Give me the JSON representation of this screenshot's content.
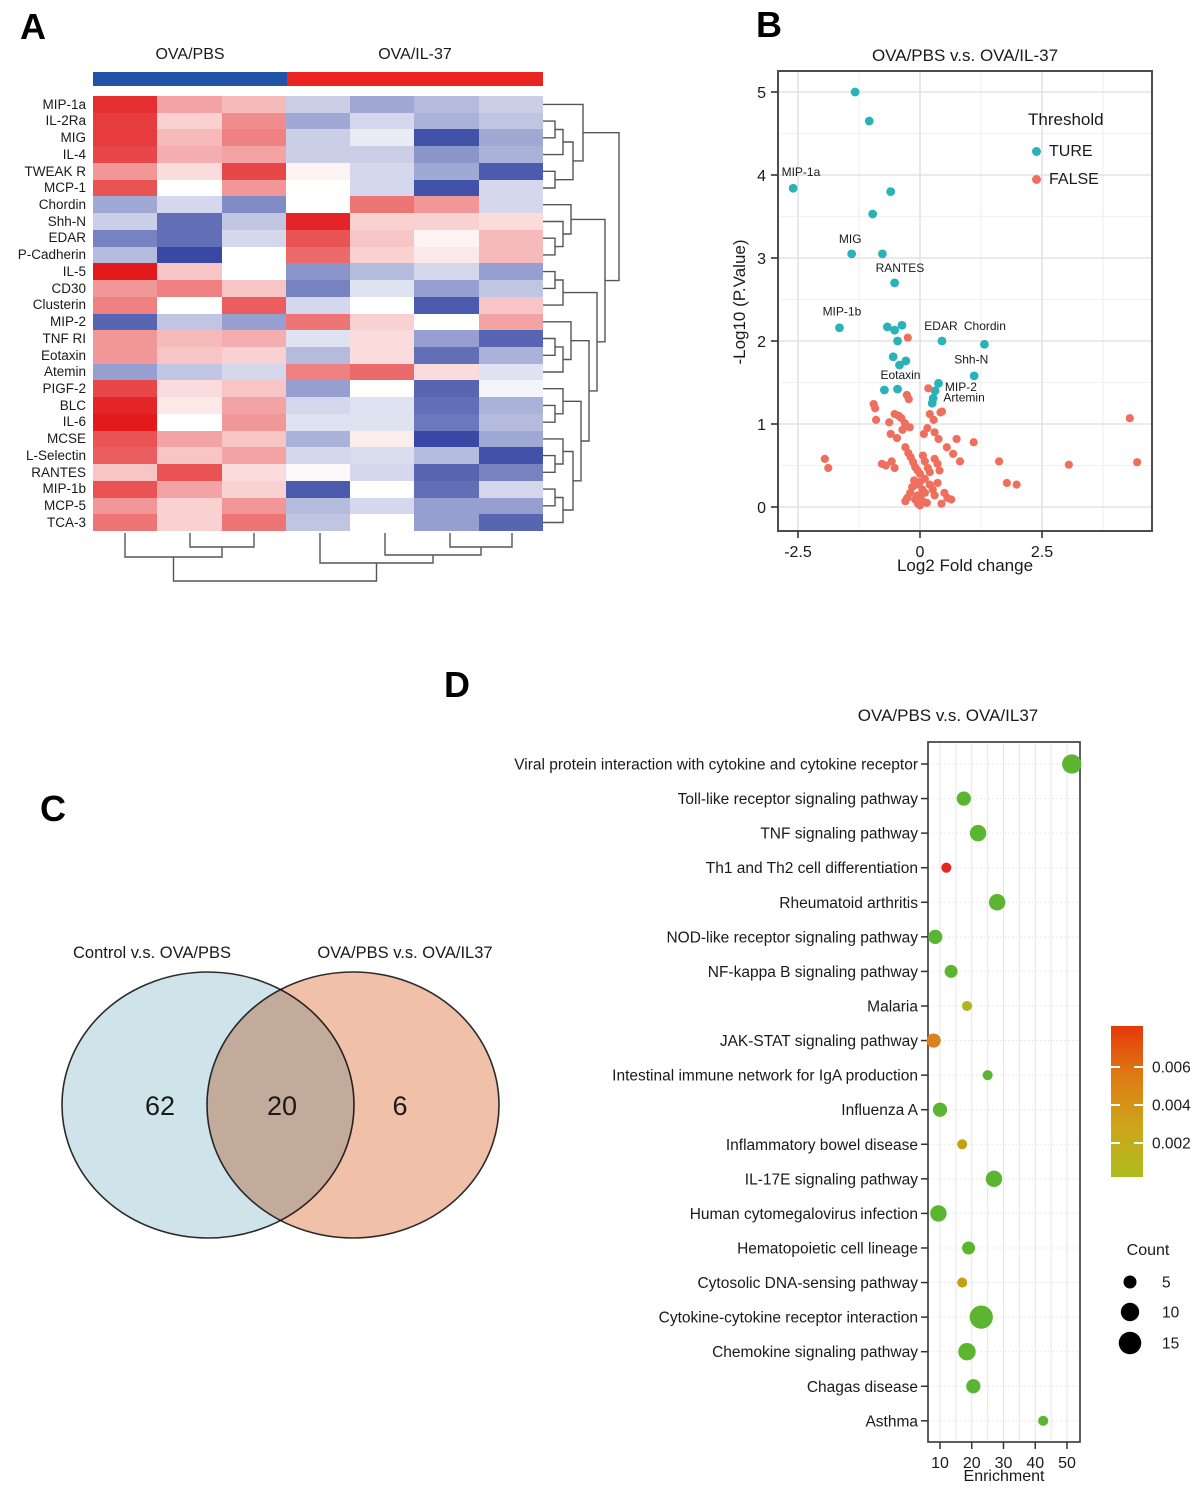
{
  "panels": {
    "a": {
      "label": "A"
    },
    "b": {
      "label": "B"
    },
    "c": {
      "label": "C"
    },
    "d": {
      "label": "D"
    }
  },
  "chart_data": [
    {
      "id": "panel_a_heatmap",
      "type": "heatmap",
      "group_labels": [
        "OVA/PBS",
        "OVA/IL-37"
      ],
      "group_columns": [
        3,
        4
      ],
      "annotation_colors": [
        "#2153a6",
        "#ea2420"
      ],
      "colormap": {
        "negative": "#2e3fa0",
        "mid": "#ffffff",
        "positive": "#e31a1c",
        "range": [
          -2,
          2
        ]
      },
      "rows": [
        "MIP-1a",
        "IL-2Ra",
        "MIG",
        "IL-4",
        "TWEAK R",
        "MCP-1",
        "Chordin",
        "Shh-N",
        "EDAR",
        "P-Cadherin",
        "IL-5",
        "CD30",
        "Clusterin",
        "MIP-2",
        "TNF RI",
        "Eotaxin",
        "Atemin",
        "PIGF-2",
        "BLC",
        "IL-6",
        "MCSE",
        "L-Selectin",
        "RANTES",
        "MIP-1b",
        "MCP-5",
        "TCA-3"
      ],
      "values": [
        [
          1.8,
          0.8,
          0.6,
          -0.5,
          -0.9,
          -0.7,
          -0.5
        ],
        [
          1.7,
          0.4,
          1.0,
          -0.9,
          -0.4,
          -0.8,
          -0.6
        ],
        [
          1.7,
          0.6,
          1.1,
          -0.5,
          -0.2,
          -1.8,
          -0.9
        ],
        [
          1.6,
          0.7,
          0.8,
          -0.5,
          -0.5,
          -1.1,
          -0.8
        ],
        [
          0.9,
          0.3,
          1.6,
          0.1,
          -0.4,
          -0.9,
          -1.7
        ],
        [
          1.5,
          0.0,
          0.9,
          0.0,
          -0.4,
          -1.8,
          -0.4
        ],
        [
          -0.9,
          -0.4,
          -1.2,
          0.0,
          1.2,
          0.9,
          -0.4
        ],
        [
          -0.5,
          -1.5,
          -0.6,
          1.9,
          0.4,
          0.4,
          0.3
        ],
        [
          -1.3,
          -1.5,
          -0.4,
          1.5,
          0.5,
          0.1,
          0.6
        ],
        [
          -0.7,
          -1.9,
          0.0,
          1.3,
          0.4,
          0.2,
          0.6
        ],
        [
          2.0,
          0.5,
          0.0,
          -1.1,
          -0.7,
          -0.4,
          -1.0
        ],
        [
          0.9,
          1.1,
          0.5,
          -1.3,
          -0.3,
          -1.0,
          -0.6
        ],
        [
          1.1,
          0.0,
          1.4,
          -0.4,
          0.0,
          -1.7,
          0.5
        ],
        [
          -1.6,
          -0.6,
          -1.0,
          1.2,
          0.4,
          0.0,
          0.8
        ],
        [
          0.9,
          0.6,
          0.7,
          -0.3,
          0.3,
          -1.0,
          -1.6
        ],
        [
          0.9,
          0.5,
          0.4,
          -0.7,
          0.3,
          -1.5,
          -0.8
        ],
        [
          -1.0,
          -0.6,
          -0.4,
          1.1,
          1.3,
          0.3,
          -0.3
        ],
        [
          1.6,
          0.3,
          0.5,
          -1.0,
          0.0,
          -1.6,
          -0.1
        ],
        [
          1.9,
          0.2,
          0.8,
          -0.4,
          -0.3,
          -1.5,
          -0.8
        ],
        [
          2.0,
          0.0,
          0.9,
          -0.3,
          -0.3,
          -1.4,
          -0.7
        ],
        [
          1.5,
          0.8,
          0.5,
          -0.8,
          0.15,
          -1.9,
          -0.9
        ],
        [
          1.4,
          0.5,
          0.8,
          -0.4,
          -0.35,
          -0.7,
          -1.8
        ],
        [
          0.5,
          1.5,
          0.3,
          0.05,
          -0.4,
          -1.6,
          -1.3
        ],
        [
          1.5,
          0.8,
          0.4,
          -1.7,
          0.0,
          -1.5,
          -0.4
        ],
        [
          0.9,
          0.4,
          0.9,
          -0.7,
          -0.4,
          -1.0,
          -1.0
        ],
        [
          1.2,
          0.4,
          1.2,
          -0.6,
          0.0,
          -1.0,
          -1.6
        ]
      ]
    },
    {
      "id": "panel_b_volcano",
      "type": "scatter",
      "title": "OVA/PBS v.s. OVA/IL-37",
      "xlabel": "Log2 Fold change",
      "ylabel": "-Log10 (P.Value)",
      "xlim": [
        -2.9,
        4.75
      ],
      "ylim": [
        -0.32,
        5.25
      ],
      "xticks": [
        -2.5,
        0,
        2.5
      ],
      "yticks": [
        0,
        1,
        2,
        3,
        4,
        5
      ],
      "xticks_minor": [
        -1.25,
        1.25,
        3.75
      ],
      "yticks_minor": [
        0.5,
        1.5,
        2.5,
        3.5,
        4.5
      ],
      "legend": {
        "title": "Threshold",
        "items": [
          {
            "label": "TURE",
            "color": "#29b2b8"
          },
          {
            "label": "FALSE",
            "color": "#ef6f5e"
          }
        ]
      },
      "series": [
        {
          "name": "TURE",
          "color": "#29b2b8",
          "points": [
            [
              -1.33,
              5.0
            ],
            [
              -1.04,
              4.65
            ],
            [
              -2.6,
              3.84
            ],
            [
              -0.6,
              3.8
            ],
            [
              -0.97,
              3.53
            ],
            [
              -1.4,
              3.05
            ],
            [
              -0.77,
              3.05
            ],
            [
              -0.52,
              2.7
            ],
            [
              -1.65,
              2.16
            ],
            [
              -0.67,
              2.17
            ],
            [
              -0.52,
              2.13
            ],
            [
              -0.37,
              2.19
            ],
            [
              -0.46,
              2.0
            ],
            [
              0.45,
              2.0
            ],
            [
              1.32,
              1.96
            ],
            [
              -0.55,
              1.81
            ],
            [
              -0.42,
              1.71
            ],
            [
              -0.29,
              1.76
            ],
            [
              1.11,
              1.58
            ],
            [
              -0.73,
              1.41
            ],
            [
              -0.46,
              1.42
            ],
            [
              0.38,
              1.49
            ],
            [
              0.31,
              1.4
            ],
            [
              0.27,
              1.31
            ],
            [
              0.25,
              1.25
            ]
          ]
        },
        {
          "name": "FALSE",
          "color": "#ef6f5e",
          "points": [
            [
              -1.95,
              0.58
            ],
            [
              -1.88,
              0.47
            ],
            [
              -0.95,
              1.24
            ],
            [
              -0.92,
              1.19
            ],
            [
              -0.25,
              2.04
            ],
            [
              0.17,
              1.43
            ],
            [
              -0.27,
              1.35
            ],
            [
              -0.23,
              1.3
            ],
            [
              0.42,
              1.14
            ],
            [
              -0.63,
              1.02
            ],
            [
              -0.38,
              1.07
            ],
            [
              -0.31,
              1.01
            ],
            [
              -0.21,
              0.96
            ],
            [
              -0.9,
              1.05
            ],
            [
              -0.52,
              1.12
            ],
            [
              -0.44,
              1.1
            ],
            [
              -0.6,
              0.88
            ],
            [
              -0.47,
              0.83
            ],
            [
              0.2,
              1.12
            ],
            [
              0.28,
              1.05
            ],
            [
              0.15,
              0.95
            ],
            [
              0.3,
              0.9
            ],
            [
              0.45,
              1.15
            ],
            [
              0.38,
              0.82
            ],
            [
              0.75,
              0.82
            ],
            [
              0.68,
              0.64
            ],
            [
              0.82,
              0.55
            ],
            [
              1.1,
              0.78
            ],
            [
              1.62,
              0.55
            ],
            [
              1.78,
              0.29
            ],
            [
              1.98,
              0.27
            ],
            [
              3.05,
              0.51
            ],
            [
              4.3,
              1.07
            ],
            [
              4.45,
              0.54
            ],
            [
              -0.78,
              0.52
            ],
            [
              -0.7,
              0.5
            ],
            [
              -0.58,
              0.55
            ],
            [
              -0.52,
              0.47
            ],
            [
              -0.3,
              0.72
            ],
            [
              -0.24,
              0.65
            ],
            [
              -0.19,
              0.6
            ],
            [
              -0.14,
              0.54
            ],
            [
              -0.1,
              0.48
            ],
            [
              -0.05,
              0.44
            ],
            [
              0.0,
              0.4
            ],
            [
              0.06,
              0.62
            ],
            [
              0.1,
              0.55
            ],
            [
              0.16,
              0.47
            ],
            [
              0.2,
              0.42
            ],
            [
              0.3,
              0.58
            ],
            [
              0.36,
              0.52
            ],
            [
              0.4,
              0.44
            ],
            [
              0.1,
              0.34
            ],
            [
              0.0,
              0.3
            ],
            [
              -0.06,
              0.27
            ],
            [
              -0.12,
              0.32
            ],
            [
              -0.16,
              0.24
            ],
            [
              0.05,
              0.21
            ],
            [
              0.1,
              0.17
            ],
            [
              -0.05,
              0.14
            ],
            [
              0.0,
              0.11
            ],
            [
              0.05,
              0.07
            ],
            [
              -0.1,
              0.09
            ],
            [
              0.14,
              0.05
            ],
            [
              -0.04,
              0.04
            ],
            [
              0.0,
              0.02
            ],
            [
              0.2,
              0.27
            ],
            [
              0.26,
              0.21
            ],
            [
              0.3,
              0.14
            ],
            [
              0.5,
              0.17
            ],
            [
              0.56,
              0.11
            ],
            [
              0.36,
              0.29
            ],
            [
              -0.2,
              0.17
            ],
            [
              -0.26,
              0.11
            ],
            [
              -0.3,
              0.07
            ],
            [
              0.64,
              0.09
            ],
            [
              0.44,
              0.04
            ],
            [
              0.08,
              0.88
            ],
            [
              -0.36,
              0.93
            ],
            [
              0.55,
              0.72
            ]
          ]
        }
      ],
      "point_labels": [
        {
          "text": "MIP-1a",
          "x": -2.44,
          "y": 3.99,
          "anchor": "middle"
        },
        {
          "text": "MIG",
          "x": -1.43,
          "y": 3.18,
          "anchor": "middle"
        },
        {
          "text": "RANTES",
          "x": -0.41,
          "y": 2.83,
          "anchor": "middle"
        },
        {
          "text": "MIP-1b",
          "x": -1.6,
          "y": 2.31,
          "anchor": "middle"
        },
        {
          "text": "EDAR",
          "x": 0.43,
          "y": 2.13,
          "anchor": "middle"
        },
        {
          "text": "Chordin",
          "x": 1.33,
          "y": 2.13,
          "anchor": "middle"
        },
        {
          "text": "Shh-N",
          "x": 1.05,
          "y": 1.73,
          "anchor": "middle"
        },
        {
          "text": "Eotaxin",
          "x": -0.4,
          "y": 1.54,
          "anchor": "middle"
        },
        {
          "text": "MIP-2",
          "x": 0.51,
          "y": 1.4,
          "anchor": "start"
        },
        {
          "text": "Artemin",
          "x": 0.48,
          "y": 1.27,
          "anchor": "start"
        }
      ]
    },
    {
      "id": "panel_c_venn",
      "type": "venn",
      "sets": [
        {
          "label": "Control v.s. OVA/PBS",
          "color": "#cfe3eb"
        },
        {
          "label": "OVA/PBS v.s. OVA/IL37",
          "color": "#f1c0a9"
        }
      ],
      "counts": {
        "left_only": "62",
        "overlap": "20",
        "right_only": "6"
      }
    },
    {
      "id": "panel_d_enrichment",
      "type": "bubble",
      "title": "OVA/PBS v.s. OVA/IL37",
      "xlabel": "Enrichment",
      "xticks": [
        10,
        20,
        30,
        40,
        50
      ],
      "xlim": [
        6,
        54
      ],
      "pathways": [
        {
          "label": "Viral protein interaction with cytokine and cytokine receptor",
          "enrichment": 51.5,
          "count": 11,
          "color": "#5cb531"
        },
        {
          "label": "Toll-like receptor signaling pathway",
          "enrichment": 17.5,
          "count": 6,
          "color": "#5cb531"
        },
        {
          "label": "TNF signaling pathway",
          "enrichment": 22,
          "count": 8,
          "color": "#5cb531"
        },
        {
          "label": "Th1 and Th2 cell differentiation",
          "enrichment": 12,
          "count": 3,
          "color": "#e8251c"
        },
        {
          "label": "Rheumatoid arthritis",
          "enrichment": 28,
          "count": 8,
          "color": "#5cb531"
        },
        {
          "label": "NOD-like receptor signaling pathway",
          "enrichment": 8.5,
          "count": 6,
          "color": "#5cb531"
        },
        {
          "label": "NF-kappa B signaling pathway",
          "enrichment": 13.5,
          "count": 5,
          "color": "#5cb531"
        },
        {
          "label": "Malaria",
          "enrichment": 18.5,
          "count": 3,
          "color": "#b0b41f"
        },
        {
          "label": "JAK-STAT signaling pathway",
          "enrichment": 8,
          "count": 6,
          "color": "#d9821f"
        },
        {
          "label": "Intestinal immune network for IgA production",
          "enrichment": 25,
          "count": 3,
          "color": "#5cb531"
        },
        {
          "label": "Influenza A",
          "enrichment": 10,
          "count": 6,
          "color": "#5cb531"
        },
        {
          "label": "Inflammatory bowel disease",
          "enrichment": 17,
          "count": 3,
          "color": "#c2a117"
        },
        {
          "label": "IL-17E signaling pathway",
          "enrichment": 27,
          "count": 8,
          "color": "#5cb531"
        },
        {
          "label": "Human cytomegalovirus infection",
          "enrichment": 9.5,
          "count": 8,
          "color": "#5cb531"
        },
        {
          "label": "Hematopoietic cell lineage",
          "enrichment": 19,
          "count": 5,
          "color": "#5cb531"
        },
        {
          "label": "Cytosolic DNA-sensing pathway",
          "enrichment": 17,
          "count": 3,
          "color": "#c2a117"
        },
        {
          "label": "Cytokine-cytokine receptor interaction",
          "enrichment": 23,
          "count": 16,
          "color": "#5cb531"
        },
        {
          "label": "Chemokine signaling pathway",
          "enrichment": 18.5,
          "count": 9,
          "color": "#5cb531"
        },
        {
          "label": "Chagas disease",
          "enrichment": 20.5,
          "count": 6,
          "color": "#5cb531"
        },
        {
          "label": "Asthma",
          "enrichment": 42.5,
          "count": 3,
          "color": "#5cb531"
        }
      ],
      "color_legend": {
        "tick_labels": [
          "0.006",
          "0.004",
          "0.002"
        ],
        "gradient": [
          "#e6380b",
          "#dd7c13",
          "#cda51a",
          "#aebc20"
        ]
      },
      "count_legend": {
        "title": "Count",
        "items": [
          {
            "label": "5",
            "count": 5
          },
          {
            "label": "10",
            "count": 10
          },
          {
            "label": "15",
            "count": 15
          }
        ]
      }
    }
  ]
}
